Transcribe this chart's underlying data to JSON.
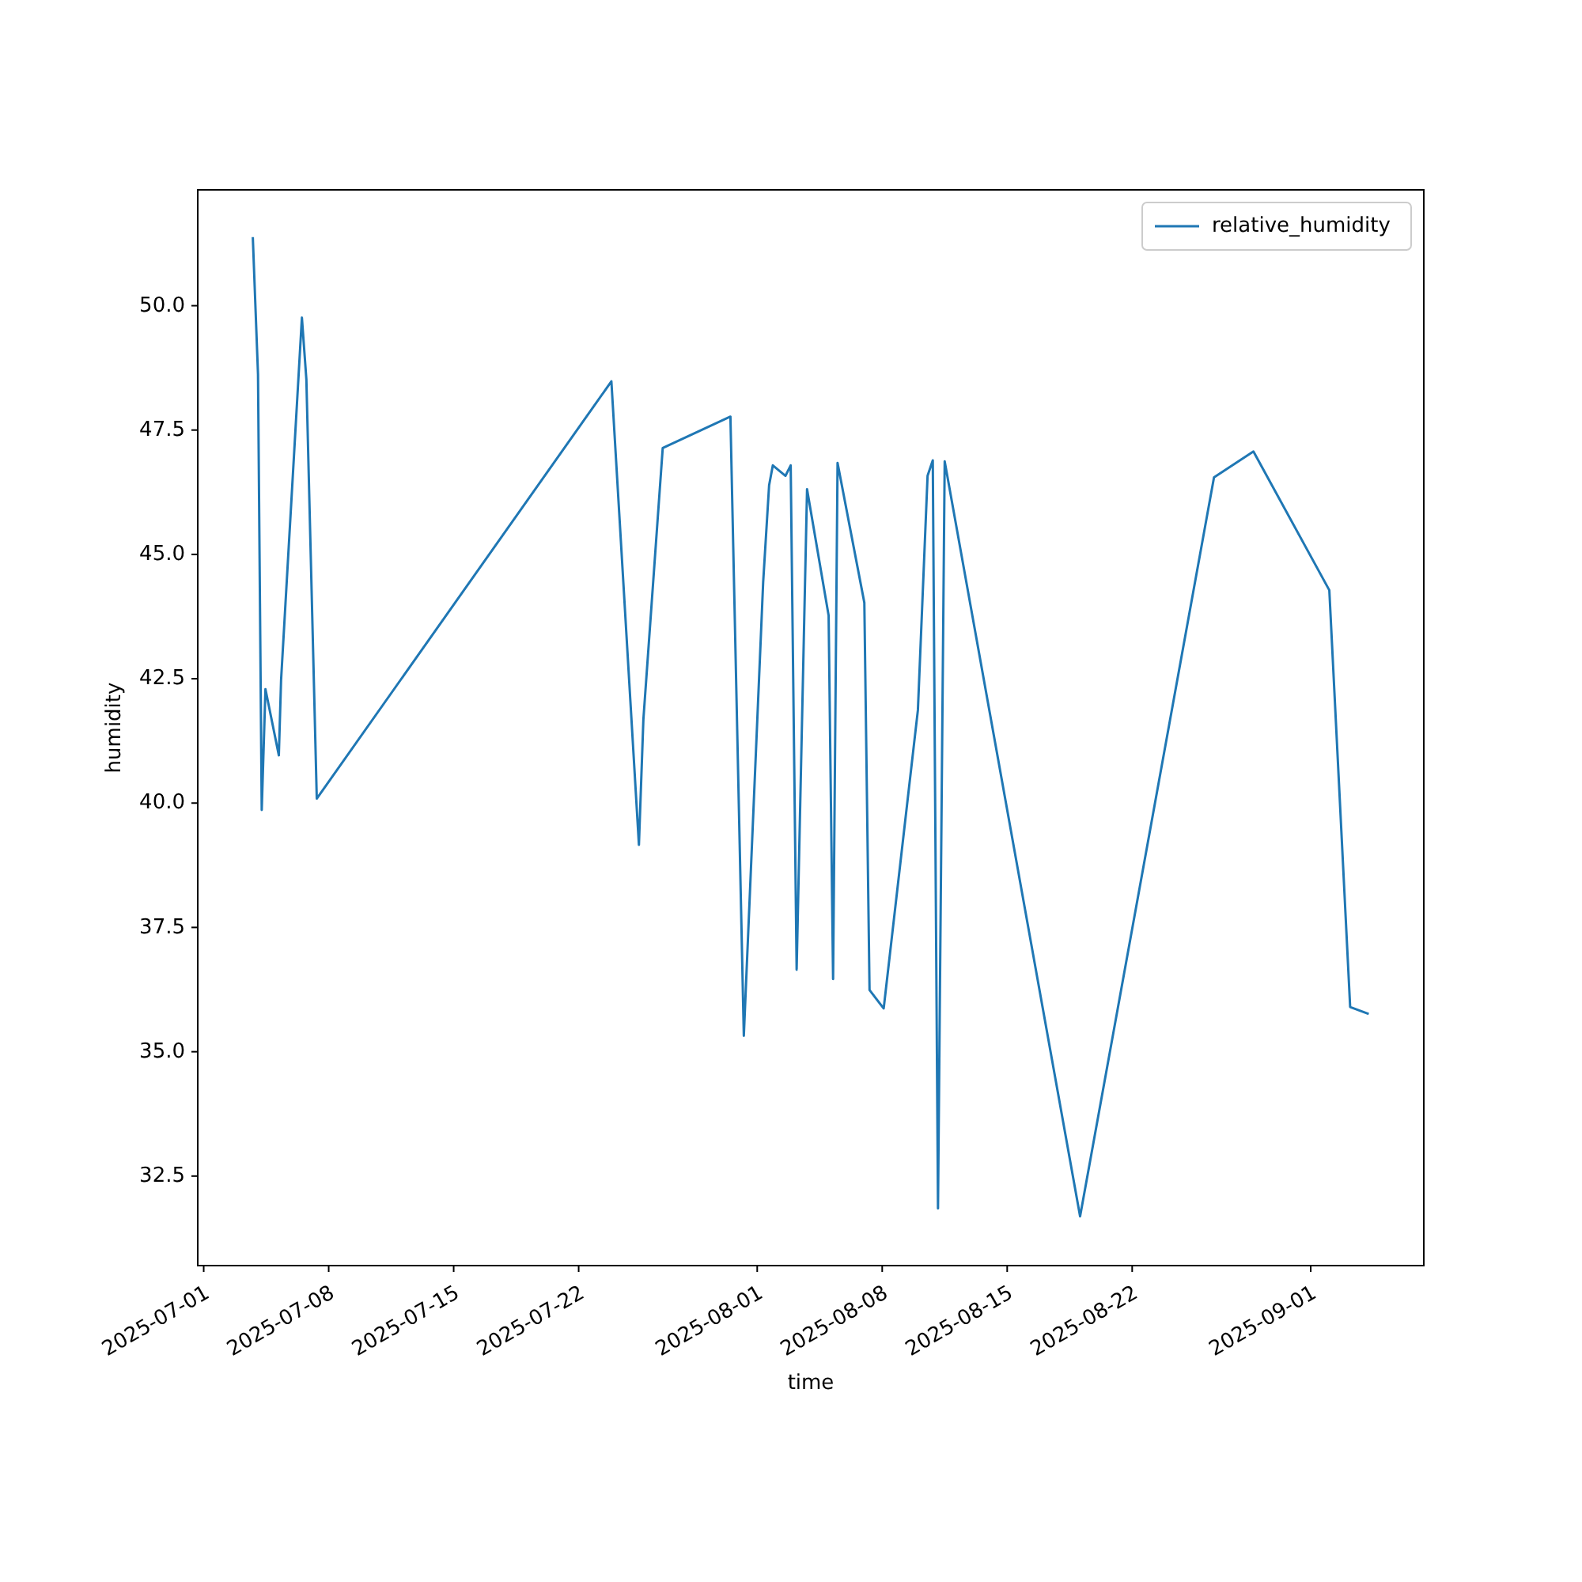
{
  "chart_data": {
    "type": "line",
    "xlabel": "time",
    "ylabel": "humidity",
    "legend": "top right",
    "grid": false,
    "xlim": [
      "2025-06-30T16:00",
      "2025-09-07T08:00"
    ],
    "xticks": [
      "2025-07-01",
      "2025-07-08",
      "2025-07-15",
      "2025-07-22",
      "2025-08-01",
      "2025-08-08",
      "2025-08-15",
      "2025-08-22",
      "2025-09-01"
    ],
    "ylim": [
      30.7,
      52.33
    ],
    "yticks": [
      {
        "value": 32.5,
        "label": "32.5"
      },
      {
        "value": 35,
        "label": "35.0"
      },
      {
        "value": 37.5,
        "label": "37.5"
      },
      {
        "value": 40,
        "label": "40.0"
      },
      {
        "value": 42.5,
        "label": "42.5"
      },
      {
        "value": 45,
        "label": "45.0"
      },
      {
        "value": 47.5,
        "label": "47.5"
      },
      {
        "value": 50,
        "label": "50.0"
      }
    ],
    "x": [
      "2025-07-03T18:00",
      "2025-07-04T01:00",
      "2025-07-04T06:00",
      "2025-07-04T11:00",
      "2025-07-05T05:00",
      "2025-07-05T08:00",
      "2025-07-06T12:00",
      "2025-07-06T18:00",
      "2025-07-07T08:00",
      "2025-07-23T20:00",
      "2025-07-25T09:00",
      "2025-07-25T15:00",
      "2025-07-26T17:00",
      "2025-07-30T12:00",
      "2025-07-31T06:00",
      "2025-08-01T08:00",
      "2025-08-01T16:00",
      "2025-08-01T21:00",
      "2025-08-02T14:00",
      "2025-08-02T21:00",
      "2025-08-03T05:00",
      "2025-08-03T19:00",
      "2025-08-05T00:00",
      "2025-08-05T06:00",
      "2025-08-05T12:00",
      "2025-08-07T00:00",
      "2025-08-07T07:00",
      "2025-08-08T02:00",
      "2025-08-10T00:00",
      "2025-08-10T13:00",
      "2025-08-10T20:00",
      "2025-08-11T03:00",
      "2025-08-11T12:00",
      "2025-08-19T02:00",
      "2025-08-26T14:00",
      "2025-08-28T19:00",
      "2025-09-02T01:00",
      "2025-09-03T05:00",
      "2025-09-04T06:00"
    ],
    "series": [
      {
        "name": "relative_humidity",
        "color": "#1f77b4",
        "values": [
          51.38,
          48.62,
          39.86,
          42.29,
          40.96,
          42.47,
          49.76,
          48.52,
          40.09,
          48.48,
          39.16,
          41.68,
          47.14,
          47.77,
          35.32,
          44.44,
          46.39,
          46.79,
          46.58,
          46.79,
          36.65,
          46.31,
          43.77,
          36.46,
          46.84,
          44.03,
          36.24,
          35.87,
          41.87,
          46.58,
          46.89,
          31.85,
          46.87,
          31.69,
          46.55,
          47.07,
          44.28,
          35.9,
          35.76
        ]
      }
    ]
  }
}
